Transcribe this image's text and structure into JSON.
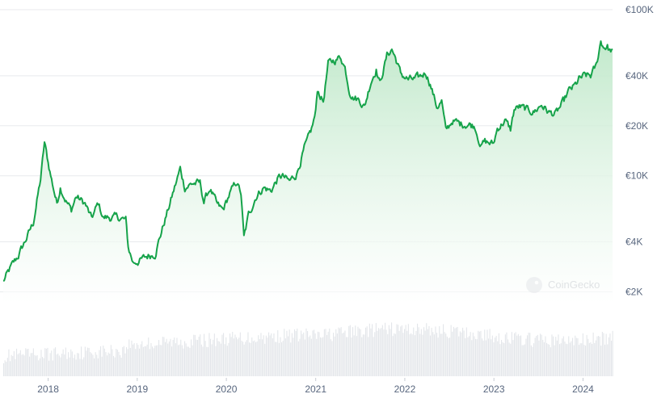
{
  "watermark": {
    "text": "CoinGecko",
    "icon": "coingecko-logo-icon"
  },
  "colors": {
    "line": "#16a34a",
    "area_top": "#bfe8c9",
    "area_bottom": "#ffffff",
    "grid": "#e8eaed",
    "volume": "#e3e6ea",
    "tick_text": "#58667e"
  },
  "chart_data": {
    "type": "area",
    "title": "",
    "xlabel": "",
    "ylabel": "",
    "y_scale": "log",
    "ylim": [
      1700,
      100000
    ],
    "xlim": [
      "2017-07-01",
      "2024-05-01"
    ],
    "grid": true,
    "y_ticks": [
      {
        "value": 100000,
        "label": "€100K"
      },
      {
        "value": 40000,
        "label": "€40K"
      },
      {
        "value": 20000,
        "label": "€20K"
      },
      {
        "value": 10000,
        "label": "€10K"
      },
      {
        "value": 4000,
        "label": "€4K"
      },
      {
        "value": 2000,
        "label": "€2K"
      }
    ],
    "x_ticks": [
      {
        "value": "2018-01-01",
        "label": "2018"
      },
      {
        "value": "2019-01-01",
        "label": "2019"
      },
      {
        "value": "2020-01-01",
        "label": "2020"
      },
      {
        "value": "2021-01-01",
        "label": "2021"
      },
      {
        "value": "2022-01-01",
        "label": "2022"
      },
      {
        "value": "2023-01-01",
        "label": "2023"
      },
      {
        "value": "2024-01-01",
        "label": "2024"
      }
    ],
    "series": [
      {
        "x": [
          "2017-07-01",
          "2017-08-01",
          "2017-09-01",
          "2017-10-01",
          "2017-11-01",
          "2017-12-01",
          "2017-12-17",
          "2018-01-01",
          "2018-01-15",
          "2018-02-06",
          "2018-02-20",
          "2018-03-15",
          "2018-04-06",
          "2018-04-25",
          "2018-06-01",
          "2018-06-28",
          "2018-07-25",
          "2018-08-15",
          "2018-09-15",
          "2018-10-15",
          "2018-11-15",
          "2018-11-25",
          "2018-12-15",
          "2019-01-15",
          "2019-02-15",
          "2019-03-15",
          "2019-04-10",
          "2019-05-15",
          "2019-06-26",
          "2019-07-15",
          "2019-08-15",
          "2019-09-15",
          "2019-10-01",
          "2019-10-26",
          "2019-11-25",
          "2019-12-18",
          "2020-01-15",
          "2020-02-13",
          "2020-03-01",
          "2020-03-13",
          "2020-04-01",
          "2020-05-01",
          "2020-06-01",
          "2020-07-01",
          "2020-07-28",
          "2020-08-15",
          "2020-09-15",
          "2020-10-15",
          "2020-11-15",
          "2020-12-01",
          "2020-12-15",
          "2021-01-01",
          "2021-01-08",
          "2021-02-01",
          "2021-02-21",
          "2021-03-13",
          "2021-04-14",
          "2021-05-01",
          "2021-05-19",
          "2021-06-01",
          "2021-07-01",
          "2021-07-20",
          "2021-08-15",
          "2021-09-06",
          "2021-09-21",
          "2021-10-20",
          "2021-11-09",
          "2021-12-01",
          "2021-12-15",
          "2022-01-15",
          "2022-02-10",
          "2022-03-01",
          "2022-03-28",
          "2022-04-15",
          "2022-05-12",
          "2022-06-01",
          "2022-06-18",
          "2022-07-15",
          "2022-08-15",
          "2022-09-15",
          "2022-10-15",
          "2022-11-09",
          "2022-11-25",
          "2022-12-30",
          "2023-01-15",
          "2023-02-15",
          "2023-03-10",
          "2023-03-25",
          "2023-04-15",
          "2023-05-15",
          "2023-06-15",
          "2023-07-15",
          "2023-08-15",
          "2023-09-11",
          "2023-10-15",
          "2023-11-01",
          "2023-12-01",
          "2023-12-15",
          "2024-01-10",
          "2024-02-01",
          "2024-02-25",
          "2024-03-14",
          "2024-03-25",
          "2024-04-10",
          "2024-04-20",
          "2024-05-01"
        ],
        "values": [
          2300,
          2800,
          3300,
          4100,
          5200,
          9500,
          15800,
          12000,
          9500,
          6800,
          8600,
          7100,
          6200,
          7500,
          6800,
          5500,
          6800,
          5600,
          5600,
          5600,
          5400,
          3700,
          3000,
          3100,
          3300,
          3400,
          4600,
          6800,
          11000,
          8500,
          9000,
          9000,
          7000,
          8400,
          6600,
          6200,
          7800,
          9200,
          7800,
          4200,
          5800,
          7500,
          8500,
          8100,
          9500,
          10000,
          9200,
          10300,
          14500,
          16500,
          19000,
          24000,
          33000,
          28000,
          47000,
          49000,
          52000,
          45000,
          33000,
          30000,
          28500,
          26000,
          37000,
          44000,
          36000,
          53000,
          58000,
          48000,
          41000,
          38000,
          38000,
          39000,
          42000,
          36000,
          26000,
          28000,
          18500,
          21500,
          20500,
          20500,
          20000,
          15200,
          16000,
          15500,
          19200,
          21500,
          19000,
          25000,
          26000,
          24900,
          24300,
          26800,
          24000,
          23500,
          28000,
          32000,
          35000,
          38000,
          40000,
          40000,
          46000,
          65000,
          60000,
          60000,
          56000,
          58000
        ]
      }
    ]
  }
}
